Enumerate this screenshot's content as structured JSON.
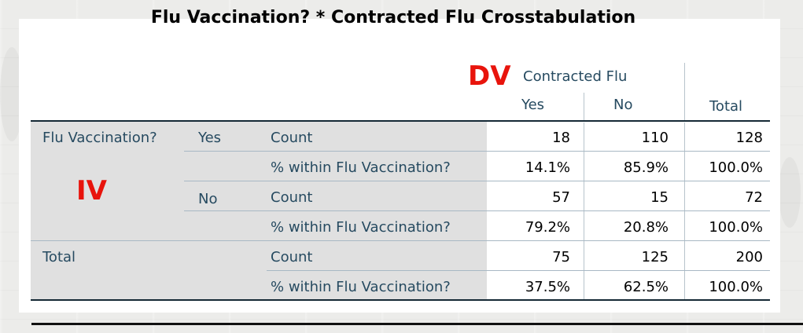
{
  "title": "Flu Vaccination? * Contracted Flu Crosstabulation",
  "annotations": {
    "dv": "DV",
    "iv": "IV",
    "color": "#e8140c"
  },
  "header": {
    "column_group": "Contracted Flu",
    "col_yes": "Yes",
    "col_no": "No",
    "col_total": "Total"
  },
  "row_labels": {
    "flu_vaccination": "Flu Vaccination?",
    "yes": "Yes",
    "no": "No",
    "total": "Total",
    "count": "Count",
    "pct_within": "% within Flu Vaccination?"
  },
  "rows": [
    {
      "yes": "18",
      "no": "110",
      "total": "128"
    },
    {
      "yes": "14.1%",
      "no": "85.9%",
      "total": "100.0%"
    },
    {
      "yes": "57",
      "no": "15",
      "total": "72"
    },
    {
      "yes": "79.2%",
      "no": "20.8%",
      "total": "100.0%"
    },
    {
      "yes": "75",
      "no": "125",
      "total": "200"
    },
    {
      "yes": "37.5%",
      "no": "62.5%",
      "total": "100.0%"
    }
  ],
  "colors": {
    "header_text": "#264a60",
    "shade": "#e0e0e0",
    "rule": "#152935"
  }
}
